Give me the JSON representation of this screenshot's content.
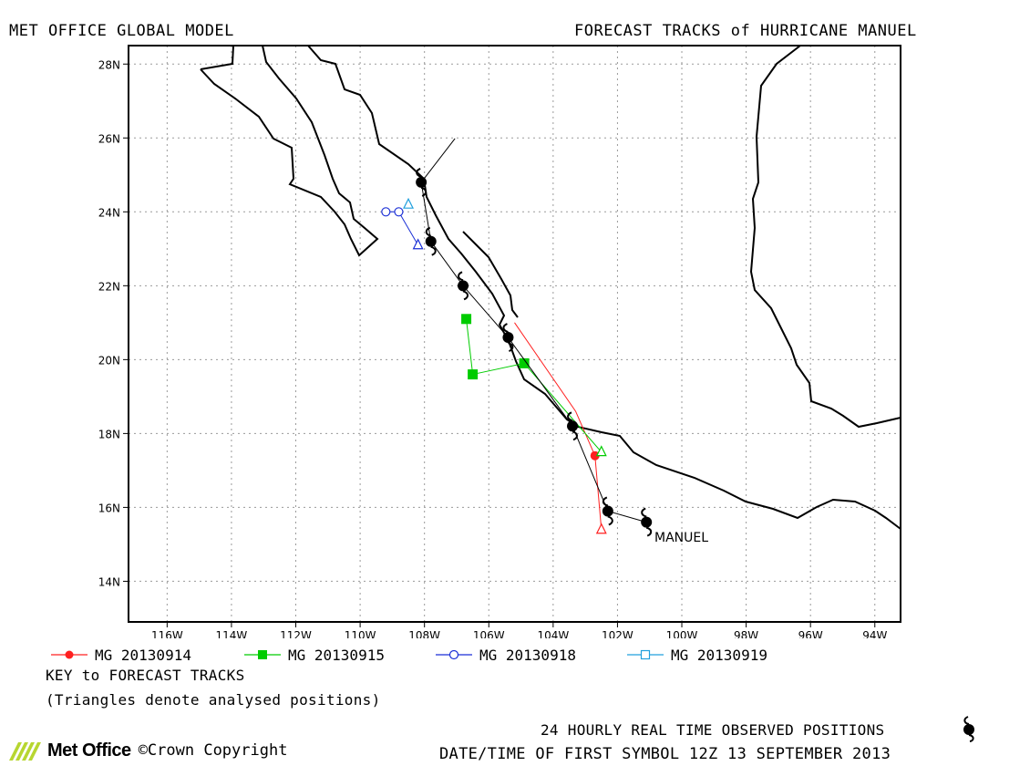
{
  "header": {
    "left_title": "MET OFFICE GLOBAL MODEL",
    "right_title": "FORECAST TRACKS of HURRICANE MANUEL"
  },
  "map": {
    "lon_range": [
      -117.2,
      -93.2
    ],
    "lat_range": [
      12.9,
      28.5
    ],
    "lon_ticks": [
      -116,
      -114,
      -112,
      -110,
      -108,
      -106,
      -104,
      -102,
      -100,
      -98,
      -96,
      -94
    ],
    "lon_tick_labels": [
      "116W",
      "114W",
      "112W",
      "110W",
      "108W",
      "106W",
      "104W",
      "102W",
      "100W",
      "98W",
      "96W",
      "94W"
    ],
    "lat_ticks": [
      14,
      16,
      18,
      20,
      22,
      24,
      26,
      28
    ],
    "lat_tick_labels": [
      "14N",
      "16N",
      "18N",
      "20N",
      "22N",
      "24N",
      "26N",
      "28N"
    ],
    "grid": true,
    "storm_label": "MANUEL"
  },
  "chart_data": {
    "type": "scatter",
    "title": "FORECAST TRACKS of HURRICANE MANUEL",
    "observed_track": {
      "name": "24 HOURLY REAL TIME OBSERVED POSITIONS",
      "points": [
        {
          "lon": -101.1,
          "lat": 15.6
        },
        {
          "lon": -102.3,
          "lat": 15.9
        },
        {
          "lon": -103.4,
          "lat": 18.2
        },
        {
          "lon": -105.4,
          "lat": 20.6
        },
        {
          "lon": -106.8,
          "lat": 22.0
        },
        {
          "lon": -107.8,
          "lat": 23.2
        },
        {
          "lon": -108.1,
          "lat": 24.8
        }
      ]
    },
    "series": [
      {
        "name": "MG 20130914",
        "color": "#ff2020",
        "marker": "circle-filled",
        "points": [
          {
            "lon": -102.7,
            "lat": 17.4
          },
          {
            "lon": -103.3,
            "lat": 18.6
          },
          {
            "lon": -105.2,
            "lat": 21.0
          }
        ],
        "analysed": {
          "lon": -102.5,
          "lat": 15.4
        }
      },
      {
        "name": "MG 20130915",
        "color": "#00cc00",
        "marker": "square-filled",
        "points": [
          {
            "lon": -104.9,
            "lat": 19.9
          },
          {
            "lon": -106.5,
            "lat": 19.6
          },
          {
            "lon": -106.7,
            "lat": 21.1
          }
        ],
        "analysed": {
          "lon": -102.5,
          "lat": 17.5
        }
      },
      {
        "name": "MG 20130918",
        "color": "#1a2fd6",
        "marker": "circle-open",
        "points": [
          {
            "lon": -108.8,
            "lat": 24.0
          },
          {
            "lon": -109.2,
            "lat": 24.0
          }
        ],
        "analysed": {
          "lon": -108.2,
          "lat": 23.1
        }
      },
      {
        "name": "MG 20130919",
        "color": "#22a0dd",
        "marker": "square-open",
        "points": [],
        "analysed": {
          "lon": -108.5,
          "lat": 24.2
        }
      }
    ]
  },
  "legend": {
    "items": [
      {
        "label": "MG 20130914",
        "color": "#ff2020",
        "marker": "circle-filled"
      },
      {
        "label": "MG 20130915",
        "color": "#00cc00",
        "marker": "square-filled"
      },
      {
        "label": "MG 20130918",
        "color": "#1a2fd6",
        "marker": "circle-open"
      },
      {
        "label": "MG 20130919",
        "color": "#22a0dd",
        "marker": "square-open"
      }
    ],
    "key_title": "KEY to FORECAST TRACKS",
    "key_note": "(Triangles denote analysed positions)"
  },
  "footer": {
    "observed_label": "24 HOURLY REAL TIME OBSERVED POSITIONS",
    "first_symbol": "DATE/TIME OF FIRST SYMBOL 12Z 13 SEPTEMBER 2013",
    "logo_text": "Met Office",
    "copyright": "©Crown Copyright"
  }
}
